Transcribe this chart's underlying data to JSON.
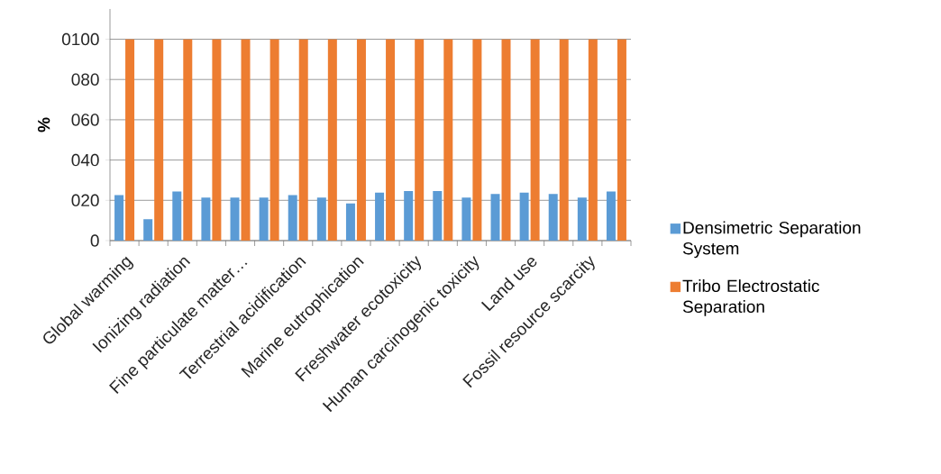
{
  "chart_data": {
    "type": "bar",
    "ylabel": "%",
    "categories": [
      "Global warming",
      null,
      "Ionizing radiation",
      null,
      "Fine particulate matter…",
      null,
      "Terrestrial acidification",
      null,
      "Marine eutrophication",
      null,
      "Freshwater ecotoxicity",
      null,
      "Human carcinogenic toxicity",
      null,
      "Land use",
      null,
      "Fossil resource scarcity",
      null
    ],
    "series": [
      {
        "name": "Densimetric Separation System",
        "color": "#5b9bd5",
        "values": [
          22.6,
          10.6,
          24.4,
          21.4,
          21.4,
          21.4,
          22.6,
          21.4,
          18.4,
          23.8,
          24.6,
          24.6,
          21.4,
          23.2,
          23.8,
          23.2,
          21.4,
          24.4
        ]
      },
      {
        "name": "Tribo Electrostatic Separation",
        "color": "#ed7d31",
        "values": [
          100,
          100,
          100,
          100,
          100,
          100,
          100,
          100,
          100,
          100,
          100,
          100,
          100,
          100,
          100,
          100,
          100,
          100
        ]
      }
    ],
    "ylim": [
      0,
      115
    ],
    "yticks": [
      0,
      {
        "value": 20,
        "label": "020"
      },
      {
        "value": 40,
        "label": "040"
      },
      {
        "value": 60,
        "label": "060"
      },
      {
        "value": 80,
        "label": "080"
      },
      {
        "value": 100,
        "label": "0100"
      }
    ],
    "grid": "y",
    "legend": "right"
  }
}
